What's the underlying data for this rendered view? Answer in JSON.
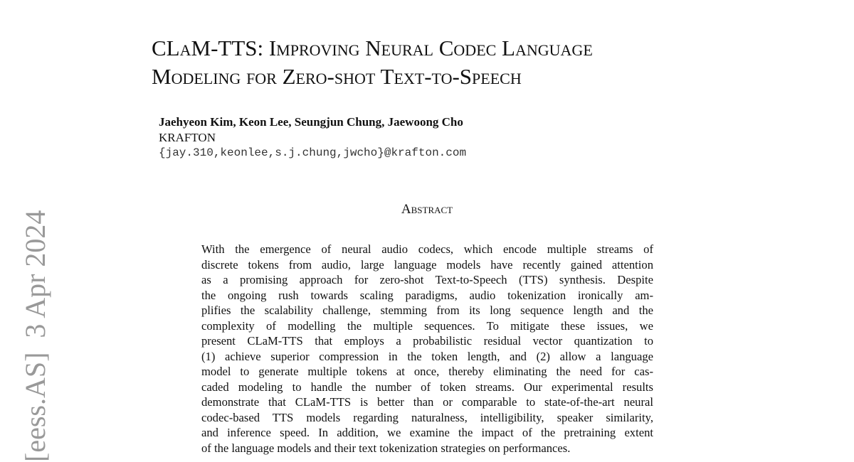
{
  "header": {
    "title_lines": [
      "CLaM-TTS: Improving Neural Codec Language",
      "Modeling for Zero-shot Text-to-Speech"
    ],
    "authors": "Jaehyeon Kim, Keon Lee, Seungjun Chung, Jaewoong Cho",
    "affiliation": "KRAFTON",
    "email": "{jay.310,keonlee,s.j.chung,jwcho}@krafton.com"
  },
  "side_stamp": "[eess.AS]  3 Apr 2024",
  "abstract": {
    "heading": "Abstract",
    "lines": [
      "With the emergence of neural audio codecs, which encode multiple streams of",
      "discrete tokens from audio, large language models have recently gained attention",
      "as a promising approach for zero-shot Text-to-Speech (TTS) synthesis. Despite",
      "the ongoing rush towards scaling paradigms, audio tokenization ironically am-",
      "plifies the scalability challenge, stemming from its long sequence length and the",
      "complexity of modelling the multiple sequences. To mitigate these issues, we",
      "present CLaM-TTS that employs a probabilistic residual vector quantization to",
      "(1) achieve superior compression in the token length, and (2) allow a language",
      "model to generate multiple tokens at once, thereby eliminating the need for cas-",
      "caded modeling to handle the number of token streams. Our experimental results",
      "demonstrate that CLaM-TTS is better than or comparable to state-of-the-art neural",
      "codec-based TTS models regarding naturalness, intelligibility, speaker similarity,",
      "and inference speed. In addition, we examine the impact of the pretraining extent",
      "of the language models and their text tokenization strategies on performances."
    ]
  }
}
